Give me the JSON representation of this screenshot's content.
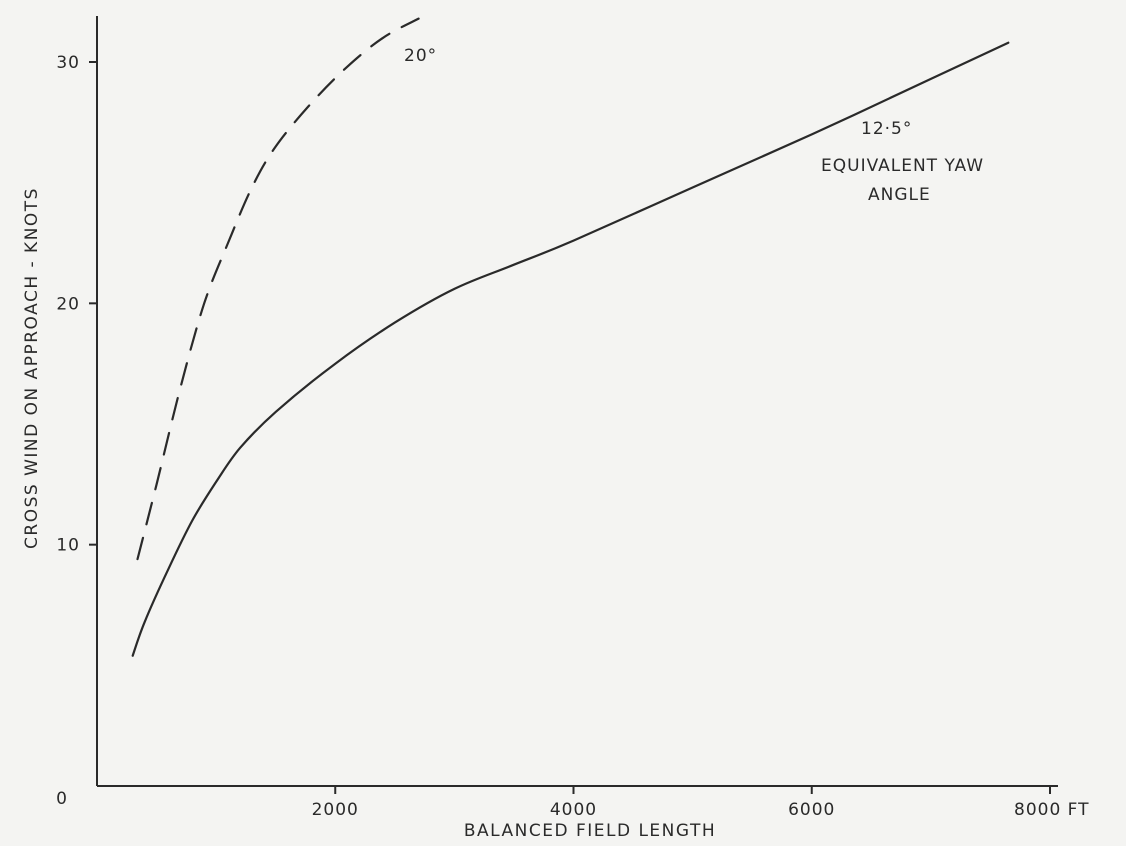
{
  "chart_data": {
    "type": "line",
    "title": "",
    "xlabel": "BALANCED FIELD LENGTH",
    "ylabel": "CROSS WIND ON APPROACH - KNOTS",
    "xlim": [
      0,
      8000
    ],
    "ylim": [
      0,
      30
    ],
    "x_ticks": [
      {
        "value": 2000,
        "label": "2000"
      },
      {
        "value": 4000,
        "label": "4000"
      },
      {
        "value": 6000,
        "label": "6000"
      },
      {
        "value": 8000,
        "label": "8000 FT"
      }
    ],
    "y_ticks": [
      {
        "value": 0,
        "label": "0"
      },
      {
        "value": 10,
        "label": "10"
      },
      {
        "value": 20,
        "label": "20"
      },
      {
        "value": 30,
        "label": "30"
      }
    ],
    "grid": false,
    "series": [
      {
        "name": "20°",
        "style": "dashed",
        "x": [
          340,
          500,
          700,
          900,
          1100,
          1300,
          1500,
          1800,
          2100,
          2400,
          2700
        ],
        "y": [
          9.4,
          12.5,
          16.5,
          20.0,
          22.5,
          24.8,
          26.5,
          28.3,
          29.8,
          31.0,
          31.8
        ]
      },
      {
        "name": "12·5°",
        "style": "solid",
        "x": [
          300,
          400,
          600,
          800,
          1000,
          1200,
          1500,
          2000,
          2500,
          3000,
          3500,
          4000,
          5000,
          6000,
          7000,
          7650
        ],
        "y": [
          5.4,
          6.8,
          9.0,
          11.0,
          12.6,
          14.0,
          15.5,
          17.5,
          19.2,
          20.6,
          21.6,
          22.6,
          24.8,
          27.0,
          29.3,
          30.8
        ]
      }
    ],
    "annotations": [
      {
        "text": "20°"
      },
      {
        "text": "12·5°"
      },
      {
        "text": "EQUIVALENT YAW"
      },
      {
        "text": "ANGLE"
      }
    ]
  }
}
